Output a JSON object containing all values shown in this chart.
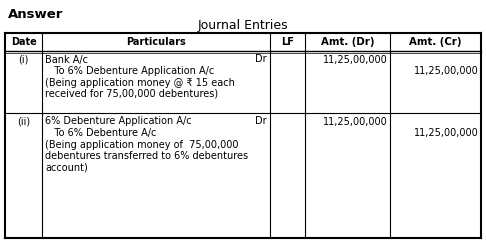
{
  "title": "Journal Entries",
  "answer_label": "Answer",
  "headers": [
    "Date",
    "Particulars",
    "LF",
    "Amt. (Dr)",
    "Amt. (Cr)"
  ],
  "bg_color": "#ffffff",
  "text_color": "#000000",
  "font_size": 7.0,
  "title_font_size": 9.0,
  "answer_font_size": 9.5,
  "rows": [
    {
      "date": "(i)",
      "entry_lines": [
        {
          "text": "Bank A/c",
          "dr": true
        },
        {
          "text": "   To 6% Debenture Application A/c",
          "dr": false
        },
        {
          "text": "(Being application money @ ₹ 15 each",
          "dr": false
        },
        {
          "text": "received for 75,00,000 debentures)",
          "dr": false
        }
      ],
      "amt_dr": "11,25,00,000",
      "amt_dr_row": 0,
      "amt_cr": "11,25,00,000",
      "amt_cr_row": 1
    },
    {
      "date": "(ii)",
      "entry_lines": [
        {
          "text": "6% Debenture Application A/c",
          "dr": true
        },
        {
          "text": "   To 6% Debenture A/c",
          "dr": false
        },
        {
          "text": "(Being application money of  75,00,000",
          "dr": false
        },
        {
          "text": "debentures transferred to 6% debentures",
          "dr": false
        },
        {
          "text": "account)",
          "dr": false
        }
      ],
      "amt_dr": "11,25,00,000",
      "amt_dr_row": 0,
      "amt_cr": "11,25,00,000",
      "amt_cr_row": 1
    }
  ]
}
